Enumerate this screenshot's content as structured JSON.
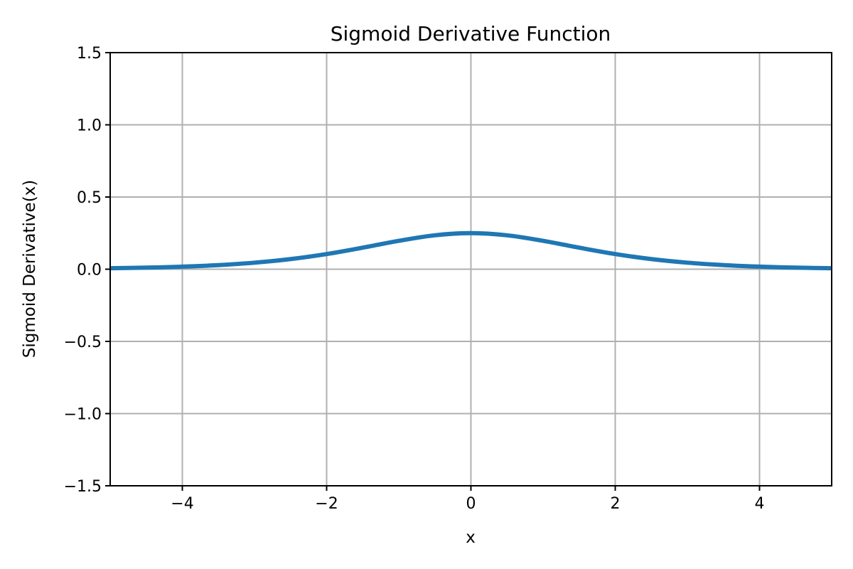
{
  "chart_data": {
    "type": "line",
    "title": "Sigmoid Derivative Function",
    "xlabel": "x",
    "ylabel": "Sigmoid Derivative(x)",
    "xlim": [
      -5,
      5
    ],
    "ylim": [
      -1.5,
      1.5
    ],
    "grid": true,
    "x_ticks": [
      -4,
      -2,
      0,
      2,
      4
    ],
    "x_tick_labels": [
      "−4",
      "−2",
      "0",
      "2",
      "4"
    ],
    "y_ticks": [
      -1.5,
      -1.0,
      -0.5,
      0.0,
      0.5,
      1.0,
      1.5
    ],
    "y_tick_labels": [
      "−1.5",
      "−1.0",
      "−0.5",
      "0.0",
      "0.5",
      "1.0",
      "1.5"
    ],
    "series": [
      {
        "color": "#1f77b4",
        "x": [
          -5,
          -4.5,
          -4,
          -3.5,
          -3,
          -2.5,
          -2,
          -1.5,
          -1,
          -0.5,
          0,
          0.5,
          1,
          1.5,
          2,
          2.5,
          3,
          3.5,
          4,
          4.5,
          5
        ],
        "y": [
          0.0066,
          0.0109,
          0.0177,
          0.0285,
          0.0452,
          0.0701,
          0.105,
          0.1491,
          0.1966,
          0.235,
          0.25,
          0.235,
          0.1966,
          0.1491,
          0.105,
          0.0701,
          0.0452,
          0.0285,
          0.0177,
          0.0109,
          0.0066
        ]
      }
    ]
  }
}
